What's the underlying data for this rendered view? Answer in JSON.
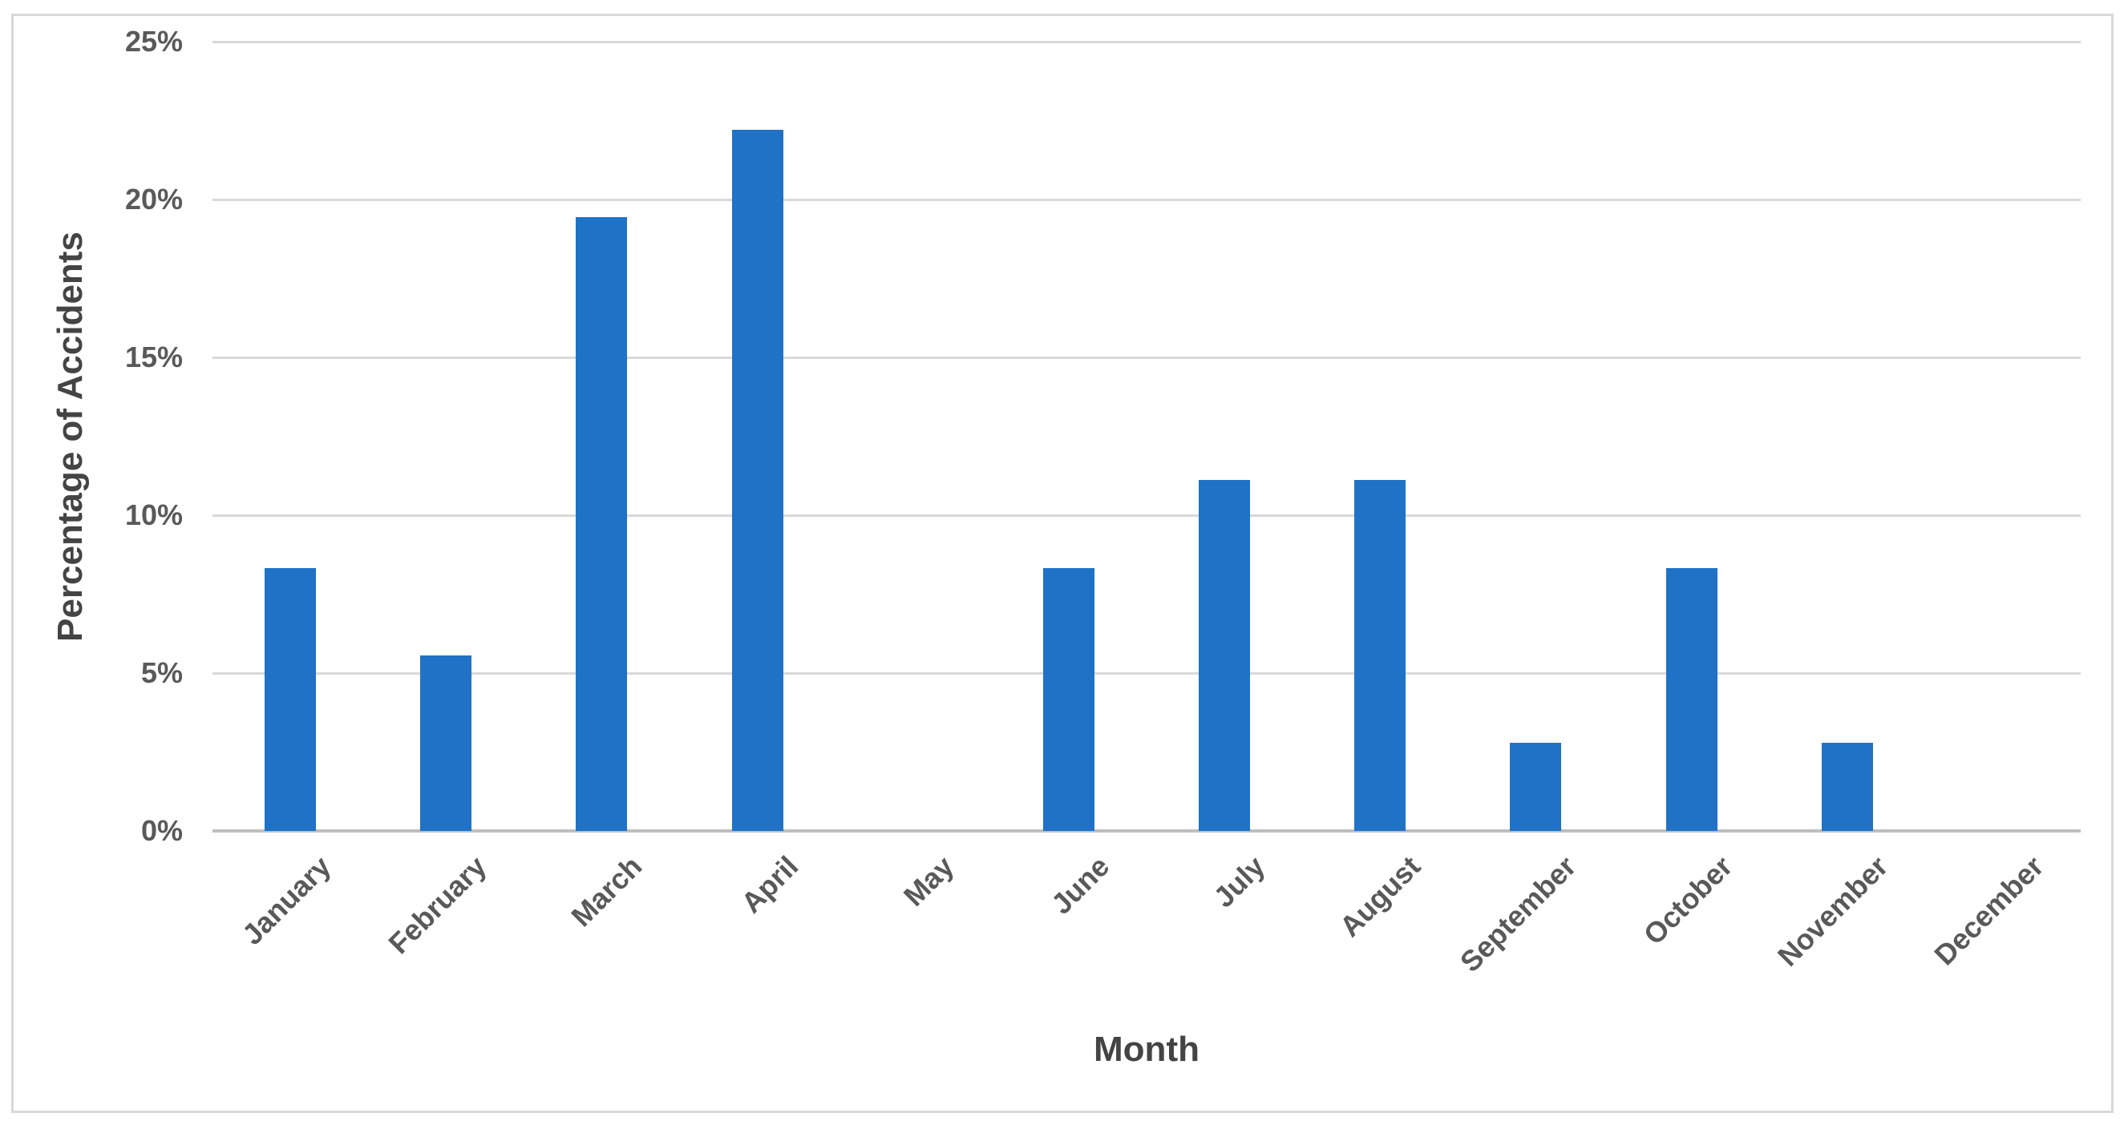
{
  "chart_data": {
    "type": "bar",
    "title": "",
    "xlabel": "Month",
    "ylabel": "Percentage of Accidents",
    "categories": [
      "January",
      "February",
      "March",
      "April",
      "May",
      "June",
      "July",
      "August",
      "September",
      "October",
      "November",
      "December"
    ],
    "values": [
      8.33,
      5.56,
      19.44,
      22.22,
      0,
      8.33,
      11.11,
      11.11,
      2.78,
      8.33,
      2.78,
      0
    ],
    "value_unit": "%",
    "ylim": [
      0,
      25
    ],
    "ytick_step": 5,
    "ytick_labels": [
      "0%",
      "5%",
      "10%",
      "15%",
      "20%",
      "25%"
    ],
    "grid": true,
    "legend_position": "none",
    "bar_color": "#1F72C6",
    "gridline_color": "#D9D9D9",
    "axis_line_color": "#BFBFBF",
    "tick_text_color": "#595959",
    "title_text_color": "#444444",
    "frame_border_color": "#D8D8D8",
    "background_color": "#FFFFFF"
  }
}
